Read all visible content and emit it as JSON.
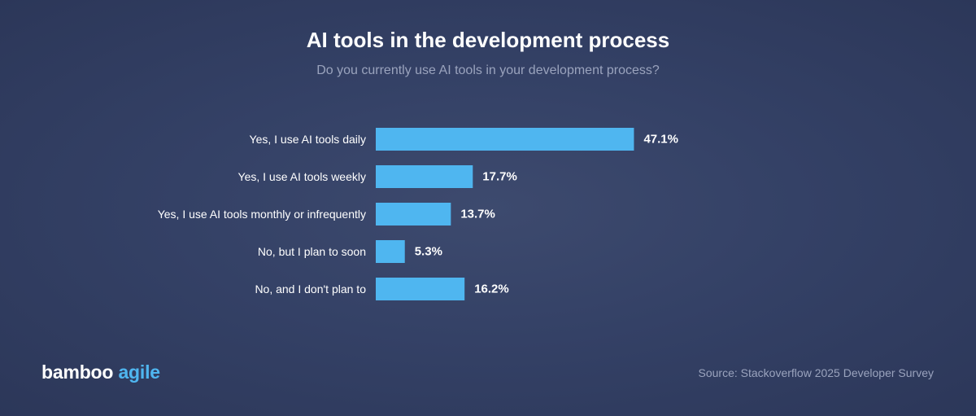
{
  "header": {
    "title": "AI tools in the development process",
    "subtitle": "Do you currently use AI tools in your development process?"
  },
  "chart_data": {
    "type": "bar",
    "orientation": "horizontal",
    "title": "AI tools in the development process",
    "subtitle": "Do you currently use AI tools in your development process?",
    "categories": [
      "Yes, I use AI tools daily",
      "Yes, I use AI tools weekly",
      "Yes, I use AI tools monthly or infrequently",
      "No, but I plan to soon",
      "No, and I don't plan to"
    ],
    "values": [
      47.1,
      17.7,
      13.7,
      5.3,
      16.2
    ],
    "value_labels": [
      "47.1%",
      "17.7%",
      "13.7%",
      "5.3%",
      "16.2%"
    ],
    "xlim": [
      0,
      100
    ],
    "grid": false,
    "legend": "none",
    "bar_color": "#4fb6f0"
  },
  "footer": {
    "logo_part1": "bamboo",
    "logo_part2": "agile",
    "source": "Source: Stackoverflow 2025 Developer Survey"
  },
  "colors": {
    "bar": "#4fb6f0",
    "logo_accent": "#4fb6f0",
    "muted_text": "#9aa3bd"
  }
}
